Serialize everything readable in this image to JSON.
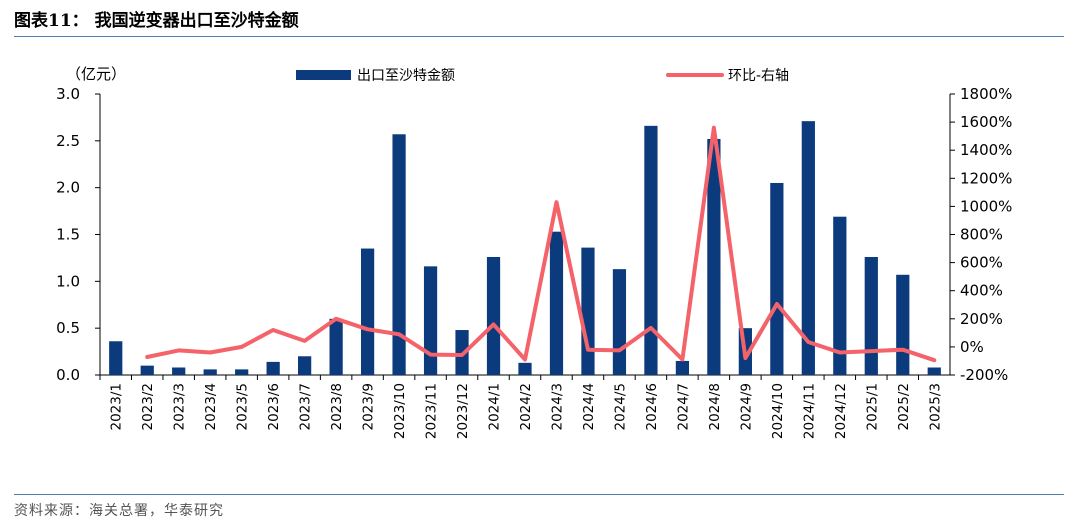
{
  "figure": {
    "title": "图表11：  我国逆变器出口至沙特金额",
    "source": "资料来源：海关总署，华泰研究"
  },
  "chart_data": {
    "type": "bar",
    "title": "我国逆变器出口至沙特金额",
    "ylabel": "（亿元）",
    "ylim": [
      0,
      3.0
    ],
    "yticks": [
      "0.0",
      "0.5",
      "1.0",
      "1.5",
      "2.0",
      "2.5",
      "3.0"
    ],
    "y2lim": [
      -200,
      1800
    ],
    "y2ticks": [
      "-200%",
      "0%",
      "200%",
      "400%",
      "600%",
      "800%",
      "1000%",
      "1200%",
      "1400%",
      "1600%",
      "1800%"
    ],
    "categories": [
      "2023/1",
      "2023/2",
      "2023/3",
      "2023/4",
      "2023/5",
      "2023/6",
      "2023/7",
      "2023/8",
      "2023/9",
      "2023/10",
      "2023/11",
      "2023/12",
      "2024/1",
      "2024/2",
      "2024/3",
      "2024/4",
      "2024/5",
      "2024/6",
      "2024/7",
      "2024/8",
      "2024/9",
      "2024/10",
      "2024/11",
      "2024/12",
      "2025/1",
      "2025/2",
      "2025/3"
    ],
    "series": [
      {
        "name": "出口至沙特金额",
        "type": "bar",
        "axis": "left",
        "color": "#0b3a7d",
        "values": [
          0.36,
          0.1,
          0.08,
          0.06,
          0.06,
          0.14,
          0.2,
          0.6,
          1.35,
          2.57,
          1.16,
          0.48,
          1.26,
          0.13,
          1.53,
          1.36,
          1.13,
          2.66,
          0.15,
          2.52,
          0.5,
          2.05,
          2.71,
          1.69,
          1.26,
          1.07,
          0.08
        ]
      },
      {
        "name": "环比-右轴",
        "type": "line",
        "axis": "right",
        "color": "#f4626a",
        "values": [
          null,
          -72,
          -25,
          -40,
          0,
          120,
          43,
          200,
          125,
          90,
          -55,
          -58,
          160,
          -90,
          1030,
          -20,
          -25,
          135,
          -90,
          1560,
          -80,
          305,
          35,
          -40,
          -30,
          -20,
          -95
        ]
      }
    ],
    "legend": "top"
  }
}
